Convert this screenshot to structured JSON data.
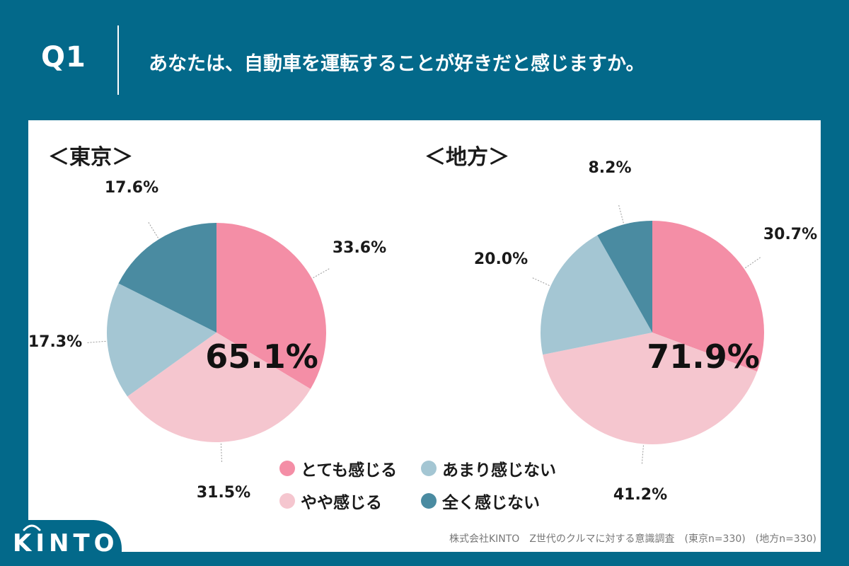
{
  "header": {
    "question_number": "Q1",
    "question_text": "あなたは、自動車を運転することが好きだと感じますか。"
  },
  "colors": {
    "background": "#03698a",
    "very": "#f48ea6",
    "somewhat": "#f5c6cf",
    "not_much": "#a4c6d3",
    "not_at_all": "#4a8ba1"
  },
  "legend": {
    "items": [
      {
        "label": "とても感じる",
        "color": "#f48ea6"
      },
      {
        "label": "あまり感じない",
        "color": "#a4c6d3"
      },
      {
        "label": "やや感じる",
        "color": "#f5c6cf"
      },
      {
        "label": "全く感じない",
        "color": "#4a8ba1"
      }
    ]
  },
  "footer": {
    "note": "株式会社KINTO　Z世代のクルマに対する意識調査　(東京n=330)　(地方n=330)"
  },
  "logo": {
    "text": "KINTO"
  },
  "chart_data": [
    {
      "type": "pie",
      "title": "＜東京＞",
      "categories": [
        "とても感じる",
        "やや感じる",
        "あまり感じない",
        "全く感じない"
      ],
      "values": [
        33.6,
        31.5,
        17.3,
        17.6
      ],
      "labels": [
        "33.6%",
        "31.5%",
        "17.3%",
        "17.6%"
      ],
      "total_label": "65.1%"
    },
    {
      "type": "pie",
      "title": "＜地方＞",
      "categories": [
        "とても感じる",
        "やや感じる",
        "あまり感じない",
        "全く感じない"
      ],
      "values": [
        30.7,
        41.2,
        20.0,
        8.2
      ],
      "labels": [
        "30.7%",
        "41.2%",
        "20.0%",
        "8.2%"
      ],
      "total_label": "71.9%"
    }
  ]
}
